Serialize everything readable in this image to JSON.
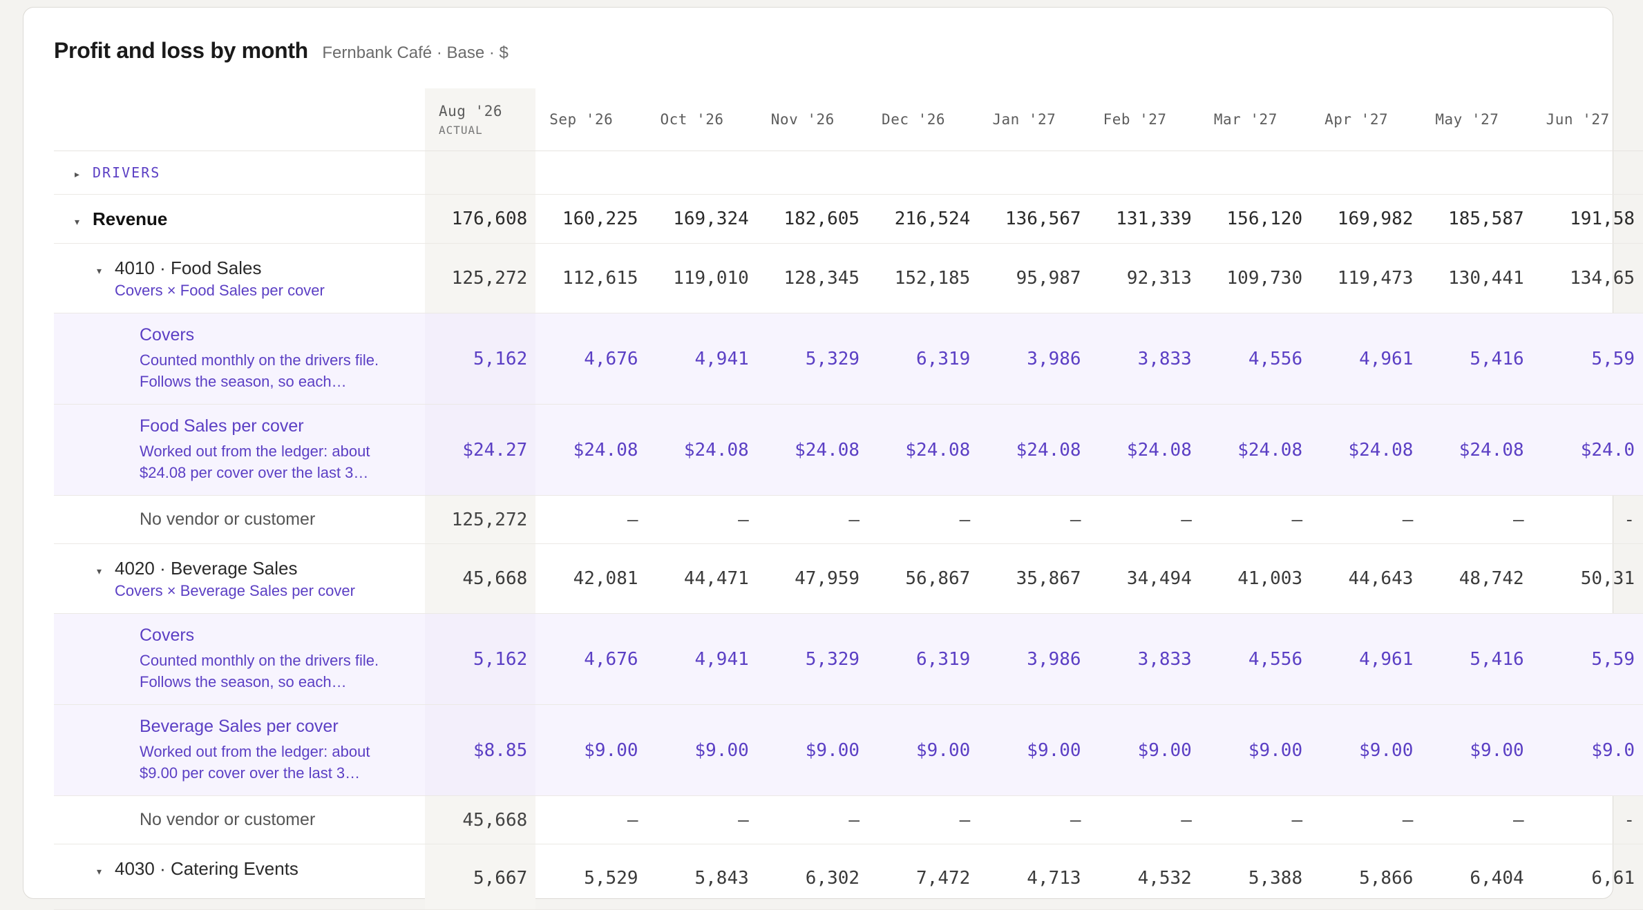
{
  "header": {
    "title": "Profit and loss by month",
    "subtitle": "Fernbank Café · Base · $"
  },
  "months": [
    "Aug '26",
    "Sep '26",
    "Oct '26",
    "Nov '26",
    "Dec '26",
    "Jan '27",
    "Feb '27",
    "Mar '27",
    "Apr '27",
    "May '27",
    "Jun '27"
  ],
  "actual_label": "ACTUAL",
  "drivers_label": "DRIVERS",
  "icons": {
    "collapsed": "caret-right-icon",
    "expanded": "caret-down-icon"
  },
  "revenue": {
    "label": "Revenue",
    "values": [
      "176,608",
      "160,225",
      "169,324",
      "182,605",
      "216,524",
      "136,567",
      "131,339",
      "156,120",
      "169,982",
      "185,587",
      "191,58"
    ]
  },
  "food_sales": {
    "name": "4010 · Food Sales",
    "formula": "Covers × Food Sales per cover",
    "values": [
      "125,272",
      "112,615",
      "119,010",
      "128,345",
      "152,185",
      "95,987",
      "92,313",
      "109,730",
      "119,473",
      "130,441",
      "134,65"
    ],
    "covers": {
      "name": "Covers",
      "desc": "Counted monthly on the drivers file. Follows the season, so each…",
      "values": [
        "5,162",
        "4,676",
        "4,941",
        "5,329",
        "6,319",
        "3,986",
        "3,833",
        "4,556",
        "4,961",
        "5,416",
        "5,59"
      ]
    },
    "per_cover": {
      "name": "Food Sales per cover",
      "desc": "Worked out from the ledger: about $24.08 per cover over the last 3…",
      "values": [
        "$24.27",
        "$24.08",
        "$24.08",
        "$24.08",
        "$24.08",
        "$24.08",
        "$24.08",
        "$24.08",
        "$24.08",
        "$24.08",
        "$24.0"
      ]
    },
    "vendor": {
      "label": "No vendor or customer",
      "values": [
        "125,272",
        "—",
        "—",
        "—",
        "—",
        "—",
        "—",
        "—",
        "—",
        "—",
        "-"
      ]
    }
  },
  "beverage_sales": {
    "name": "4020 · Beverage Sales",
    "formula": "Covers × Beverage Sales per cover",
    "values": [
      "45,668",
      "42,081",
      "44,471",
      "47,959",
      "56,867",
      "35,867",
      "34,494",
      "41,003",
      "44,643",
      "48,742",
      "50,31"
    ],
    "covers": {
      "name": "Covers",
      "desc": "Counted monthly on the drivers file. Follows the season, so each…",
      "values": [
        "5,162",
        "4,676",
        "4,941",
        "5,329",
        "6,319",
        "3,986",
        "3,833",
        "4,556",
        "4,961",
        "5,416",
        "5,59"
      ]
    },
    "per_cover": {
      "name": "Beverage Sales per cover",
      "desc": "Worked out from the ledger: about $9.00 per cover over the last 3…",
      "values": [
        "$8.85",
        "$9.00",
        "$9.00",
        "$9.00",
        "$9.00",
        "$9.00",
        "$9.00",
        "$9.00",
        "$9.00",
        "$9.00",
        "$9.0"
      ]
    },
    "vendor": {
      "label": "No vendor or customer",
      "values": [
        "45,668",
        "—",
        "—",
        "—",
        "—",
        "—",
        "—",
        "—",
        "—",
        "—",
        "-"
      ]
    }
  },
  "catering": {
    "name": "4030 · Catering Events",
    "values": [
      "5,667",
      "5,529",
      "5,843",
      "6,302",
      "7,472",
      "4,713",
      "4,532",
      "5,388",
      "5,866",
      "6,404",
      "6,61"
    ]
  },
  "colors": {
    "driver_purple": "#5b3fc4",
    "driver_row_bg": "#f7f4fe",
    "actual_col_bg": "#f6f5f2"
  }
}
